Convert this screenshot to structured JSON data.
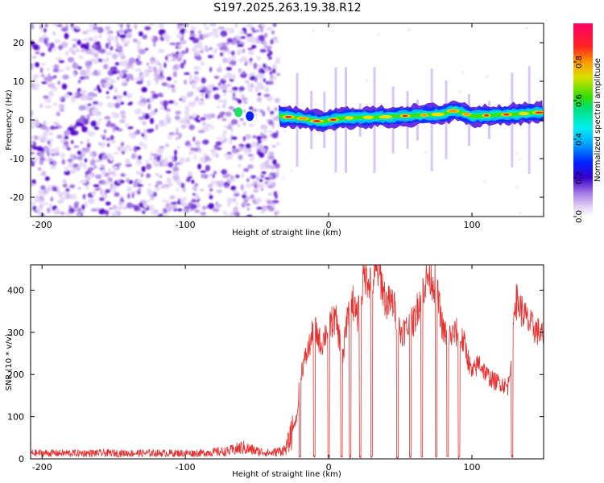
{
  "title": "S197.2025.263.19.38.R12",
  "chart_data": [
    {
      "type": "heatmap",
      "name": "spectrogram",
      "xlabel": "Height of straight line (km)",
      "ylabel": "Frequency (Hz)",
      "xlim": [
        -208,
        150
      ],
      "ylim": [
        -25,
        25
      ],
      "xticks": [
        -200,
        -100,
        0,
        100
      ],
      "yticks": [
        -20,
        -10,
        0,
        10,
        20
      ],
      "noise_region_x": [
        -208,
        -35
      ],
      "signal_trace": [
        {
          "x": -35,
          "y": 1.0
        },
        {
          "x": -20,
          "y": 0.5
        },
        {
          "x": -5,
          "y": -0.5
        },
        {
          "x": 10,
          "y": 0.5
        },
        {
          "x": 40,
          "y": 0.8
        },
        {
          "x": 80,
          "y": 1.5
        },
        {
          "x": 88,
          "y": 2.5
        },
        {
          "x": 100,
          "y": 1.0
        },
        {
          "x": 130,
          "y": 1.5
        },
        {
          "x": 150,
          "y": 2.0
        }
      ],
      "colorbar": {
        "label": "Normalized spectral amplitude",
        "range": [
          0.0,
          1.0
        ],
        "ticks": [
          "0.0",
          "0.2",
          "0.4",
          "0.6",
          "0.8"
        ]
      }
    },
    {
      "type": "line",
      "name": "snr",
      "xlabel": "Height of straight line (km)",
      "ylabel": "SNR (10 * v/v)",
      "xlim": [
        -208,
        150
      ],
      "ylim": [
        0,
        460
      ],
      "xticks": [
        -200,
        -100,
        0,
        100
      ],
      "yticks": [
        0,
        100,
        200,
        300,
        400
      ],
      "color": "#e8302f",
      "series": [
        {
          "name": "SNR",
          "x": [
            -208,
            -180,
            -150,
            -120,
            -90,
            -70,
            -60,
            -50,
            -40,
            -30,
            -22,
            -20,
            -15,
            -10,
            -5,
            0,
            5,
            10,
            15,
            20,
            25,
            30,
            35,
            40,
            45,
            50,
            55,
            60,
            65,
            70,
            75,
            80,
            85,
            90,
            95,
            100,
            105,
            110,
            115,
            120,
            125,
            128,
            130,
            135,
            140,
            150
          ],
          "y": [
            15,
            15,
            15,
            15,
            15,
            20,
            30,
            20,
            15,
            25,
            100,
            200,
            250,
            310,
            270,
            320,
            330,
            240,
            400,
            330,
            440,
            420,
            450,
            370,
            370,
            300,
            310,
            330,
            400,
            440,
            410,
            300,
            290,
            300,
            270,
            200,
            230,
            200,
            185,
            180,
            170,
            260,
            380,
            350,
            320,
            290
          ]
        }
      ],
      "dropouts_x": [
        -20,
        -10,
        0,
        9,
        15,
        22,
        30,
        48,
        57,
        65,
        75,
        83,
        91,
        128
      ]
    }
  ]
}
